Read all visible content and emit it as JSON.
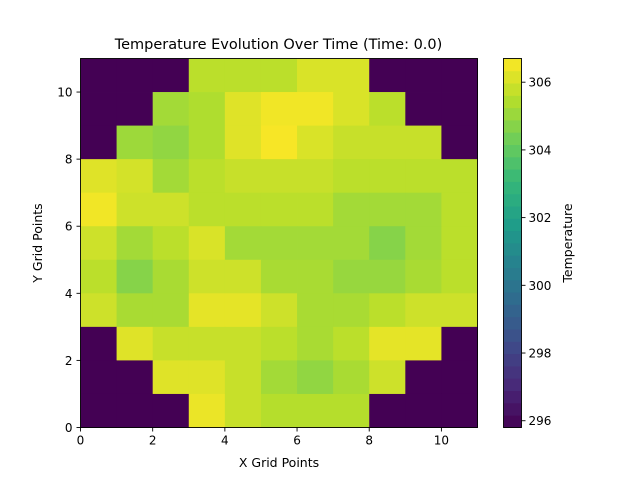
{
  "chart_data": {
    "type": "heatmap",
    "title": "Temperature Evolution Over Time (Time: 0.0)",
    "xlabel": "X Grid Points",
    "ylabel": "Y Grid Points",
    "xlim": [
      0,
      11
    ],
    "ylim": [
      0,
      11
    ],
    "x_ticks": [
      0,
      2,
      4,
      6,
      8,
      10
    ],
    "y_ticks": [
      0,
      2,
      4,
      6,
      8,
      10
    ],
    "colorbar": {
      "label": "Temperature",
      "range": [
        295.8,
        306.7
      ],
      "ticks": [
        296,
        298,
        300,
        302,
        304,
        306
      ],
      "colormap": "viridis",
      "levels": 30
    },
    "grid": false,
    "rows_top_to_bottom": true,
    "values": [
      [
        295.8,
        295.8,
        295.8,
        305.6,
        305.6,
        305.6,
        306.1,
        306.1,
        295.8,
        295.8,
        295.8
      ],
      [
        295.8,
        295.8,
        305.2,
        305.4,
        306.2,
        306.5,
        306.5,
        306.1,
        305.6,
        295.8,
        295.8
      ],
      [
        295.8,
        305.1,
        304.9,
        305.4,
        306.2,
        306.6,
        306.1,
        305.8,
        305.8,
        305.8,
        295.8
      ],
      [
        306.2,
        306.0,
        305.2,
        305.6,
        305.8,
        305.8,
        305.8,
        305.6,
        305.6,
        305.6,
        305.6
      ],
      [
        306.5,
        305.9,
        305.9,
        305.6,
        305.6,
        305.6,
        305.6,
        305.2,
        305.2,
        305.2,
        305.6
      ],
      [
        305.9,
        305.2,
        305.6,
        306.1,
        305.2,
        305.2,
        305.2,
        305.2,
        304.7,
        305.2,
        305.6
      ],
      [
        305.6,
        304.7,
        305.3,
        305.9,
        305.9,
        305.3,
        305.3,
        305.0,
        305.0,
        305.3,
        305.6
      ],
      [
        305.9,
        305.3,
        305.3,
        306.3,
        306.3,
        305.9,
        305.3,
        305.3,
        305.6,
        305.9,
        305.9
      ],
      [
        295.8,
        306.2,
        305.8,
        305.8,
        305.8,
        305.6,
        305.3,
        305.6,
        306.3,
        306.3,
        295.8
      ],
      [
        295.8,
        295.8,
        306.2,
        306.2,
        305.8,
        305.2,
        304.9,
        305.3,
        305.9,
        295.8,
        295.8
      ],
      [
        295.8,
        295.8,
        295.8,
        306.4,
        305.8,
        305.5,
        305.5,
        305.5,
        295.8,
        295.8,
        295.8
      ]
    ]
  }
}
